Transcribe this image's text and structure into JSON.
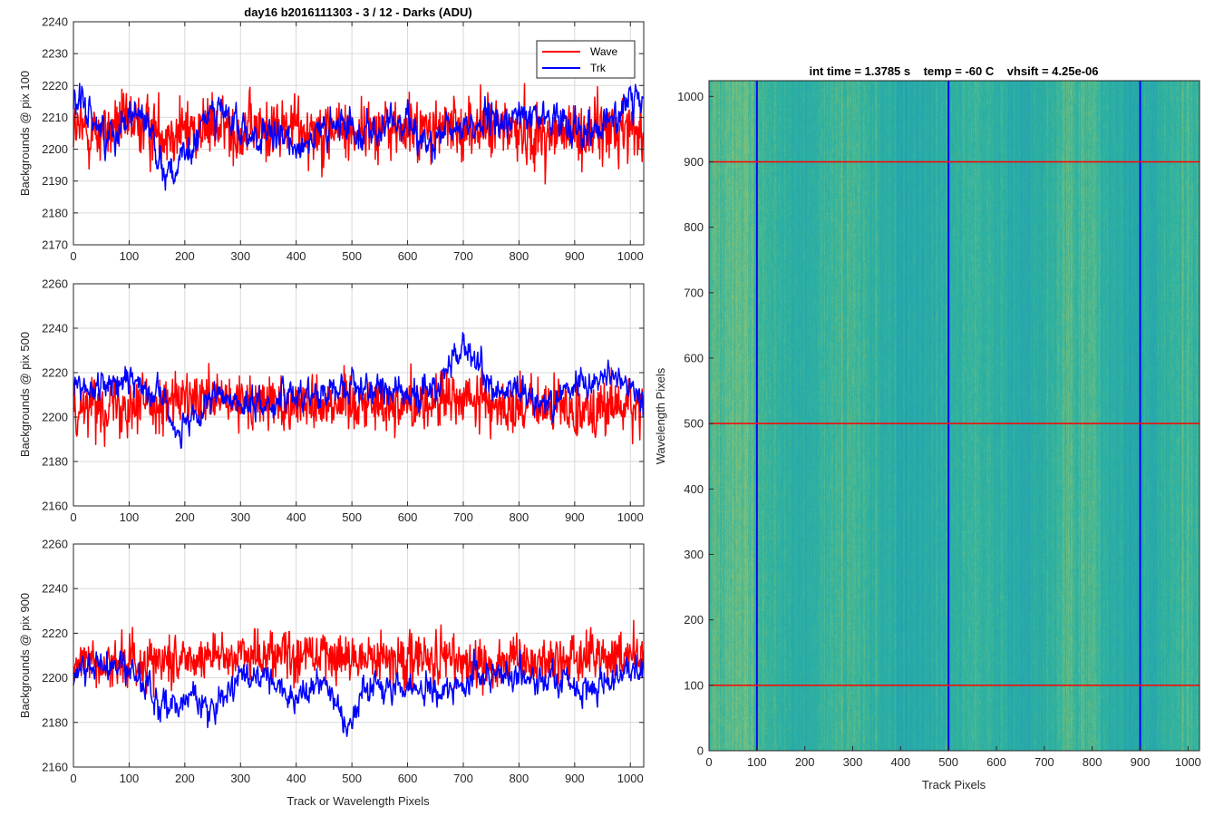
{
  "figure": {
    "title": "day16 b2016111303 - 3 / 12 - Darks (ADU)"
  },
  "colors": {
    "wave": "#ff0000",
    "trk": "#0000ff",
    "grid": "#d9d9d9",
    "axes": "#262626",
    "heat_low": "#1f9ab8",
    "heat_mid": "#2fb3a0",
    "heat_high": "#b4c85c"
  },
  "chart_data": [
    {
      "type": "line",
      "ylabel": "Backgrounds @ pix 100",
      "xlabel": "",
      "xlim": [
        0,
        1024
      ],
      "ylim": [
        2170,
        2240
      ],
      "xticks": [
        0,
        100,
        200,
        300,
        400,
        500,
        600,
        700,
        800,
        900,
        1000
      ],
      "yticks": [
        2170,
        2180,
        2190,
        2200,
        2210,
        2220,
        2230,
        2240
      ],
      "grid": true,
      "legend": {
        "location": "top-right",
        "entries": [
          "Wave",
          "Trk"
        ]
      },
      "series": [
        {
          "name": "Wave",
          "color": "#ff0000",
          "x": [
            0,
            50,
            100,
            150,
            200,
            250,
            300,
            350,
            400,
            450,
            500,
            550,
            600,
            650,
            700,
            750,
            800,
            850,
            900,
            950,
            1023
          ],
          "mean": [
            2206,
            2205,
            2208,
            2206,
            2206,
            2207,
            2206,
            2206,
            2207,
            2206,
            2206,
            2207,
            2206,
            2206,
            2207,
            2207,
            2206,
            2204,
            2205,
            2206,
            2207
          ],
          "noise_sd": 7
        },
        {
          "name": "Trk",
          "color": "#0000ff",
          "x": [
            0,
            30,
            60,
            100,
            130,
            160,
            180,
            210,
            250,
            300,
            350,
            400,
            450,
            500,
            550,
            600,
            640,
            700,
            750,
            800,
            850,
            900,
            950,
            1000,
            1023
          ],
          "mean": [
            2214,
            2212,
            2203,
            2212,
            2210,
            2195,
            2193,
            2198,
            2215,
            2205,
            2203,
            2202,
            2205,
            2208,
            2205,
            2210,
            2200,
            2208,
            2208,
            2210,
            2210,
            2208,
            2207,
            2214,
            2216
          ],
          "noise_sd": 4
        }
      ]
    },
    {
      "type": "line",
      "ylabel": "Backgrounds @ pix 500",
      "xlabel": "",
      "xlim": [
        0,
        1024
      ],
      "ylim": [
        2160,
        2260
      ],
      "xticks": [
        0,
        100,
        200,
        300,
        400,
        500,
        600,
        700,
        800,
        900,
        1000
      ],
      "yticks": [
        2160,
        2180,
        2200,
        2220,
        2240,
        2260
      ],
      "grid": true,
      "series": [
        {
          "name": "Wave",
          "color": "#ff0000",
          "x": [
            0,
            100,
            200,
            300,
            400,
            500,
            600,
            700,
            800,
            900,
            1023
          ],
          "mean": [
            2205,
            2207,
            2207,
            2206,
            2207,
            2207,
            2206,
            2208,
            2204,
            2204,
            2205
          ],
          "noise_sd": 9
        },
        {
          "name": "Trk",
          "color": "#0000ff",
          "x": [
            0,
            50,
            100,
            150,
            190,
            220,
            260,
            300,
            350,
            400,
            450,
            500,
            550,
            600,
            650,
            700,
            720,
            750,
            800,
            850,
            900,
            950,
            1000,
            1023
          ],
          "mean": [
            2213,
            2214,
            2216,
            2213,
            2193,
            2198,
            2210,
            2206,
            2206,
            2210,
            2212,
            2214,
            2213,
            2210,
            2213,
            2232,
            2225,
            2213,
            2210,
            2206,
            2215,
            2218,
            2215,
            2205
          ],
          "noise_sd": 5
        }
      ]
    },
    {
      "type": "line",
      "ylabel": "Backgrounds @ pix 900",
      "xlabel": "Track or Wavelength Pixels",
      "xlim": [
        0,
        1024
      ],
      "ylim": [
        2160,
        2260
      ],
      "xticks": [
        0,
        100,
        200,
        300,
        400,
        500,
        600,
        700,
        800,
        900,
        1000
      ],
      "yticks": [
        2160,
        2180,
        2200,
        2220,
        2240,
        2260
      ],
      "grid": true,
      "series": [
        {
          "name": "Wave",
          "color": "#ff0000",
          "x": [
            0,
            100,
            200,
            300,
            400,
            500,
            600,
            700,
            800,
            900,
            1023
          ],
          "mean": [
            2207,
            2207,
            2209,
            2211,
            2211,
            2209,
            2209,
            2207,
            2206,
            2208,
            2210
          ],
          "noise_sd": 8
        },
        {
          "name": "Trk",
          "color": "#0000ff",
          "x": [
            0,
            50,
            100,
            130,
            160,
            200,
            240,
            270,
            300,
            350,
            400,
            450,
            490,
            530,
            580,
            620,
            660,
            700,
            750,
            800,
            850,
            900,
            950,
            1000,
            1023
          ],
          "mean": [
            2203,
            2205,
            2204,
            2196,
            2186,
            2193,
            2188,
            2190,
            2200,
            2198,
            2190,
            2200,
            2180,
            2196,
            2198,
            2196,
            2192,
            2198,
            2203,
            2200,
            2198,
            2196,
            2196,
            2205,
            2205
          ],
          "noise_sd": 5
        }
      ]
    },
    {
      "type": "heatmap",
      "title": "int time = 1.3785 s    temp = -60 C    vhsift = 4.25e-06",
      "xlabel": "Track Pixels",
      "ylabel": "Wavelength Pixels",
      "xlim": [
        0,
        1024
      ],
      "ylim": [
        0,
        1024
      ],
      "xticks": [
        0,
        100,
        200,
        300,
        400,
        500,
        600,
        700,
        800,
        900,
        1000
      ],
      "yticks": [
        0,
        100,
        200,
        300,
        400,
        500,
        600,
        700,
        800,
        900,
        1000
      ],
      "vlines": {
        "color": "#0000ff",
        "x": [
          100,
          500,
          900
        ]
      },
      "hlines": {
        "color": "#ff0000",
        "y": [
          100,
          500,
          900
        ]
      }
    }
  ]
}
